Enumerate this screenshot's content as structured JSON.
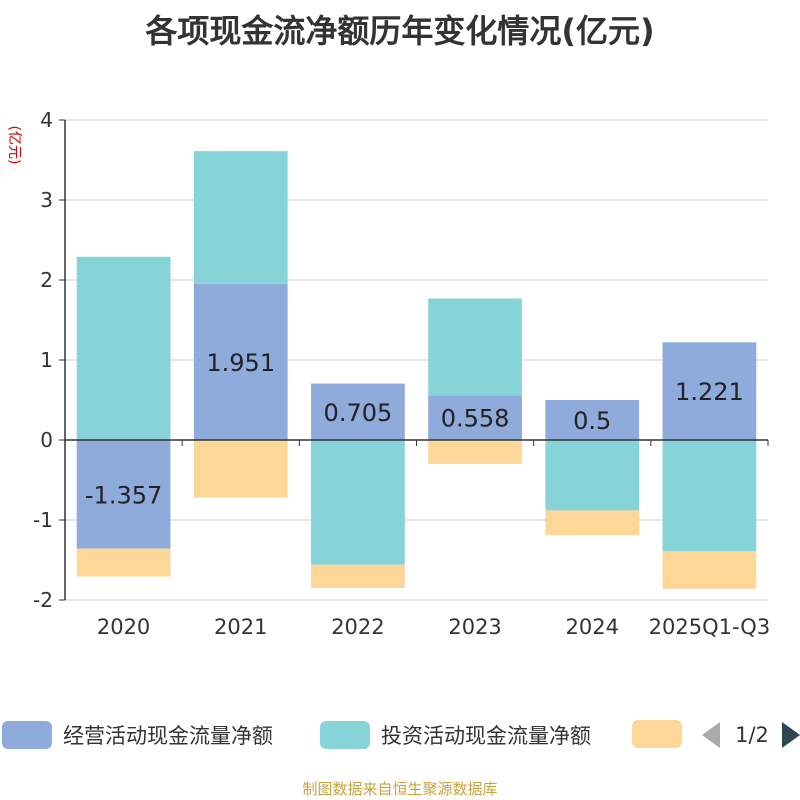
{
  "chart_data": {
    "type": "bar",
    "stacked": true,
    "title": "各项现金流净额历年变化情况(亿元)",
    "ylabel": "(亿元)",
    "ylim": [
      -2,
      4
    ],
    "yticks": [
      -2,
      -1,
      0,
      1,
      2,
      3,
      4
    ],
    "categories": [
      "2020",
      "2021",
      "2022",
      "2023",
      "2024",
      "2025Q1-Q3"
    ],
    "series": [
      {
        "name": "经营活动现金流量净额",
        "color": "#8fabdb",
        "values": [
          -1.357,
          1.951,
          0.705,
          0.558,
          0.5,
          1.221
        ],
        "labels": [
          "-1.357",
          "1.951",
          "0.705",
          "0.558",
          "0.5",
          "1.221"
        ]
      },
      {
        "name": "投资活动现金流量净额",
        "color": "#87d4d8",
        "values": [
          2.29,
          1.66,
          -1.56,
          1.21,
          -0.88,
          -1.39
        ]
      },
      {
        "name": "",
        "color": "#fdd797",
        "values": [
          -0.35,
          -0.72,
          -0.29,
          -0.3,
          -0.31,
          -0.47
        ]
      }
    ],
    "legend_position": "bottom",
    "grid": true
  },
  "legend": {
    "page": "1/2"
  },
  "source": "制图数据来自恒生聚源数据库"
}
